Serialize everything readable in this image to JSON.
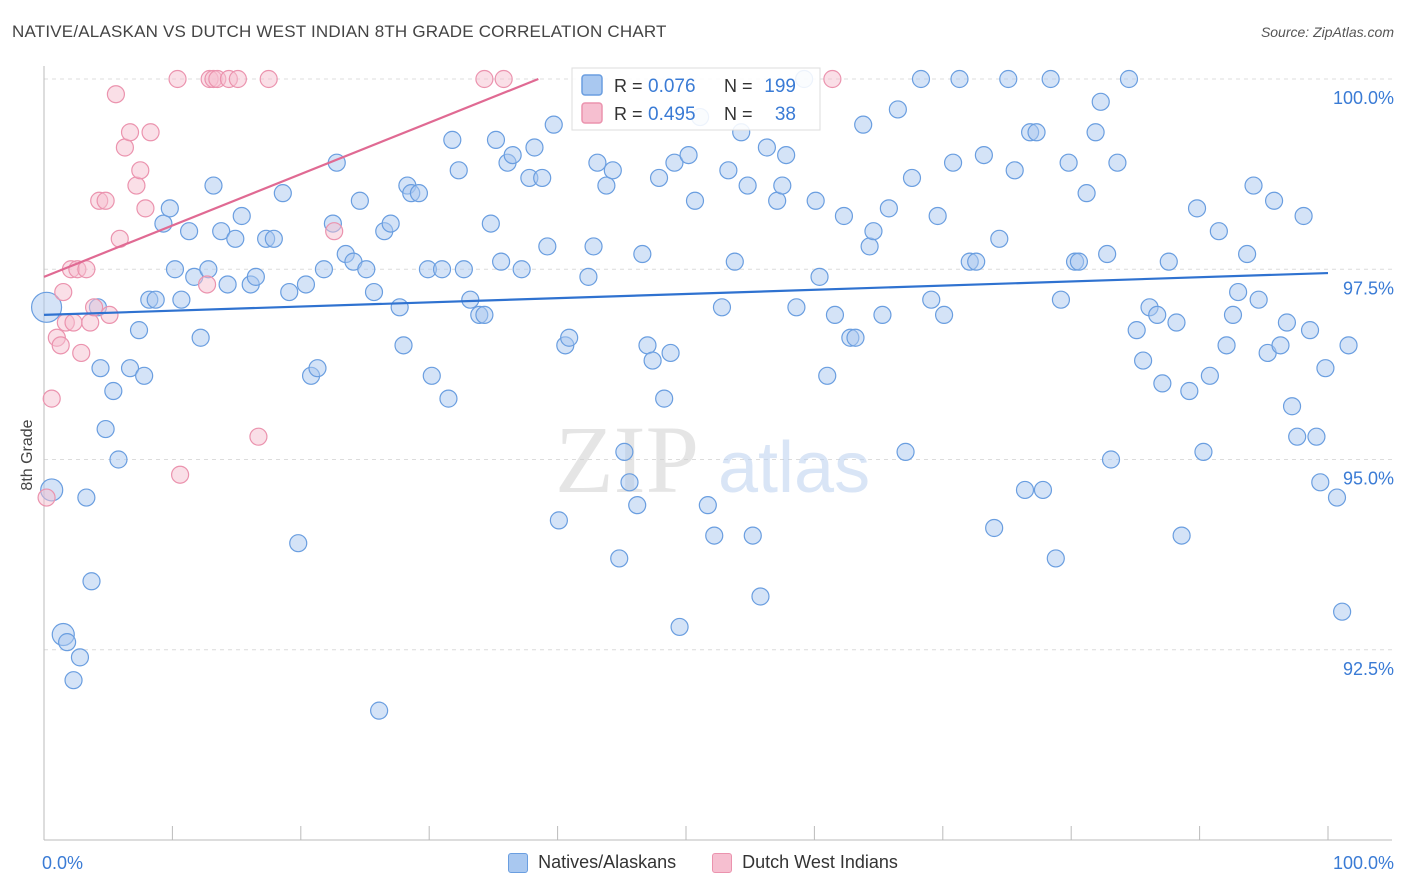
{
  "header": {
    "title": "NATIVE/ALASKAN VS DUTCH WEST INDIAN 8TH GRADE CORRELATION CHART",
    "source": "Source: ZipAtlas.com"
  },
  "watermark": {
    "zip": "ZIP",
    "atlas": "atlas"
  },
  "stats_legend": [
    {
      "r_label": "R =",
      "r_value": "0.076",
      "n_label": "N =",
      "n_value": "199"
    },
    {
      "r_label": "R =",
      "r_value": "0.495",
      "n_label": "N =",
      "n_value": "38"
    }
  ],
  "bottom_legend": [
    {
      "label": "Natives/Alaskans"
    },
    {
      "label": "Dutch West Indians"
    }
  ],
  "colors": {
    "blue_fill": "#a9c8f0",
    "blue_stroke": "#6a9ee0",
    "blue_line": "#2f72d0",
    "pink_fill": "#f6bfd0",
    "pink_stroke": "#eb93ae",
    "pink_line": "#e06a93",
    "value_text": "#3a7bd5",
    "grid": "#dcdcdc"
  },
  "chart_data": {
    "type": "scatter",
    "title": "NATIVE/ALASKAN VS DUTCH WEST INDIAN 8TH GRADE CORRELATION CHART",
    "ylabel": "8th Grade",
    "xlabel": "",
    "x_tick_labels": [
      "0.0%",
      "100.0%"
    ],
    "y_tick_labels": [
      "100.0%",
      "97.5%",
      "95.0%",
      "92.5%"
    ],
    "y_ticks": [
      100.0,
      97.5,
      95.0,
      92.5
    ],
    "xlim": [
      0,
      100
    ],
    "ylim": [
      90.0,
      100.25
    ],
    "grid": true,
    "legend_position": "top-center",
    "series": [
      {
        "name": "Natives/Alaskans",
        "color": "#a9c8f0",
        "trend": {
          "x": [
            0,
            100
          ],
          "y": [
            96.9,
            97.45
          ]
        },
        "points": [
          [
            0.2,
            97.0,
            "L"
          ],
          [
            0.6,
            94.6,
            "M"
          ],
          [
            1.5,
            92.7,
            "M"
          ],
          [
            1.8,
            92.6
          ],
          [
            2.3,
            92.1
          ],
          [
            2.8,
            92.4
          ],
          [
            3.3,
            94.5
          ],
          [
            3.7,
            93.4
          ],
          [
            4.2,
            97.0
          ],
          [
            4.4,
            96.2
          ],
          [
            4.8,
            95.4
          ],
          [
            5.4,
            95.9
          ],
          [
            5.8,
            95.0
          ],
          [
            6.7,
            96.2
          ],
          [
            7.4,
            96.7
          ],
          [
            7.8,
            96.1
          ],
          [
            8.2,
            97.1
          ],
          [
            8.7,
            97.1
          ],
          [
            9.3,
            98.1
          ],
          [
            9.8,
            98.3
          ],
          [
            10.2,
            97.5
          ],
          [
            10.7,
            97.1
          ],
          [
            11.3,
            98.0
          ],
          [
            11.7,
            97.4
          ],
          [
            12.2,
            96.6
          ],
          [
            12.8,
            97.5
          ],
          [
            13.2,
            98.6
          ],
          [
            13.8,
            98.0
          ],
          [
            14.3,
            97.3
          ],
          [
            14.9,
            97.9
          ],
          [
            15.4,
            98.2
          ],
          [
            16.1,
            97.3
          ],
          [
            16.5,
            97.4
          ],
          [
            17.3,
            97.9
          ],
          [
            17.9,
            97.9
          ],
          [
            18.6,
            98.5
          ],
          [
            19.1,
            97.2
          ],
          [
            19.8,
            93.9
          ],
          [
            20.4,
            97.3
          ],
          [
            20.8,
            96.1
          ],
          [
            21.3,
            96.2
          ],
          [
            21.8,
            97.5
          ],
          [
            22.5,
            98.1
          ],
          [
            22.8,
            98.9
          ],
          [
            23.5,
            97.7
          ],
          [
            24.1,
            97.6
          ],
          [
            24.6,
            98.4
          ],
          [
            25.1,
            97.5
          ],
          [
            25.7,
            97.2
          ],
          [
            26.1,
            91.7
          ],
          [
            26.5,
            98.0
          ],
          [
            27.0,
            98.1
          ],
          [
            27.7,
            97.0
          ],
          [
            28.0,
            96.5
          ],
          [
            28.3,
            98.6
          ],
          [
            28.6,
            98.5
          ],
          [
            29.2,
            98.5
          ],
          [
            29.9,
            97.5
          ],
          [
            30.2,
            96.1
          ],
          [
            31.0,
            97.5
          ],
          [
            31.5,
            95.8
          ],
          [
            31.8,
            99.2
          ],
          [
            32.3,
            98.8
          ],
          [
            32.7,
            97.5
          ],
          [
            33.2,
            97.1
          ],
          [
            33.9,
            96.9
          ],
          [
            34.3,
            96.9
          ],
          [
            34.8,
            98.1
          ],
          [
            35.2,
            99.2
          ],
          [
            35.6,
            97.6
          ],
          [
            36.1,
            98.9
          ],
          [
            36.5,
            99.0
          ],
          [
            37.2,
            97.5
          ],
          [
            37.8,
            98.7
          ],
          [
            38.2,
            99.1
          ],
          [
            38.8,
            98.7
          ],
          [
            39.2,
            97.8
          ],
          [
            39.7,
            99.4
          ],
          [
            40.1,
            94.2
          ],
          [
            40.6,
            96.5
          ],
          [
            40.9,
            96.6
          ],
          [
            42.4,
            97.4
          ],
          [
            42.8,
            97.8
          ],
          [
            43.1,
            98.9
          ],
          [
            43.8,
            98.6
          ],
          [
            44.3,
            98.8
          ],
          [
            44.8,
            93.7
          ],
          [
            45.2,
            95.1
          ],
          [
            45.6,
            94.7
          ],
          [
            46.2,
            94.4
          ],
          [
            46.6,
            97.7
          ],
          [
            47.0,
            96.5
          ],
          [
            47.4,
            96.3
          ],
          [
            47.9,
            98.7
          ],
          [
            48.3,
            95.8
          ],
          [
            48.8,
            96.4
          ],
          [
            49.1,
            98.9
          ],
          [
            49.5,
            92.8
          ],
          [
            50.2,
            99.0
          ],
          [
            50.7,
            98.4
          ],
          [
            51.1,
            99.5
          ],
          [
            51.7,
            94.4
          ],
          [
            52.2,
            94.0
          ],
          [
            52.8,
            97.0
          ],
          [
            53.3,
            98.8
          ],
          [
            53.8,
            97.6
          ],
          [
            54.3,
            99.3
          ],
          [
            54.8,
            98.6
          ],
          [
            55.2,
            94.0
          ],
          [
            55.8,
            93.2
          ],
          [
            56.3,
            99.1
          ],
          [
            57.1,
            98.4
          ],
          [
            57.5,
            98.6
          ],
          [
            57.8,
            99.0
          ],
          [
            58.6,
            97.0
          ],
          [
            59.2,
            100.0
          ],
          [
            60.1,
            98.4
          ],
          [
            60.4,
            97.4
          ],
          [
            61.0,
            96.1
          ],
          [
            61.6,
            96.9
          ],
          [
            62.3,
            98.2
          ],
          [
            62.8,
            96.6
          ],
          [
            63.2,
            96.6
          ],
          [
            63.8,
            99.4
          ],
          [
            64.3,
            97.8
          ],
          [
            64.6,
            98.0
          ],
          [
            65.3,
            96.9
          ],
          [
            65.8,
            98.3
          ],
          [
            66.5,
            99.6
          ],
          [
            67.1,
            95.1
          ],
          [
            67.6,
            98.7
          ],
          [
            68.3,
            100.0
          ],
          [
            69.1,
            97.1
          ],
          [
            69.6,
            98.2
          ],
          [
            70.1,
            96.9
          ],
          [
            70.8,
            98.9
          ],
          [
            71.3,
            100.0
          ],
          [
            72.1,
            97.6
          ],
          [
            72.6,
            97.6
          ],
          [
            73.2,
            99.0
          ],
          [
            74.0,
            94.1
          ],
          [
            74.4,
            97.9
          ],
          [
            75.1,
            100.0
          ],
          [
            75.6,
            98.8
          ],
          [
            76.4,
            94.6
          ],
          [
            76.8,
            99.3
          ],
          [
            77.3,
            99.3
          ],
          [
            77.8,
            94.6
          ],
          [
            78.4,
            100.0
          ],
          [
            78.8,
            93.7
          ],
          [
            79.2,
            97.1
          ],
          [
            79.8,
            98.9
          ],
          [
            80.3,
            97.6
          ],
          [
            80.6,
            97.6
          ],
          [
            81.2,
            98.5
          ],
          [
            81.9,
            99.3
          ],
          [
            82.3,
            99.7
          ],
          [
            82.8,
            97.7
          ],
          [
            83.1,
            95.0
          ],
          [
            83.6,
            98.9
          ],
          [
            84.5,
            100.0
          ],
          [
            85.1,
            96.7
          ],
          [
            85.6,
            96.3
          ],
          [
            86.1,
            97.0
          ],
          [
            86.7,
            96.9
          ],
          [
            87.1,
            96.0
          ],
          [
            87.6,
            97.6
          ],
          [
            88.2,
            96.8
          ],
          [
            88.6,
            94.0
          ],
          [
            89.2,
            95.9
          ],
          [
            89.8,
            98.3
          ],
          [
            90.3,
            95.1
          ],
          [
            90.8,
            96.1
          ],
          [
            91.5,
            98.0
          ],
          [
            92.1,
            96.5
          ],
          [
            92.6,
            96.9
          ],
          [
            93.0,
            97.2
          ],
          [
            93.7,
            97.7
          ],
          [
            94.2,
            98.6
          ],
          [
            94.6,
            97.1
          ],
          [
            95.3,
            96.4
          ],
          [
            95.8,
            98.4
          ],
          [
            96.3,
            96.5
          ],
          [
            96.8,
            96.8
          ],
          [
            97.2,
            95.7
          ],
          [
            97.6,
            95.3
          ],
          [
            98.1,
            98.2
          ],
          [
            98.6,
            96.7
          ],
          [
            99.1,
            95.3
          ],
          [
            99.4,
            94.7
          ],
          [
            99.8,
            96.2
          ],
          [
            100.7,
            94.5
          ],
          [
            101.1,
            93.0
          ],
          [
            101.6,
            96.5
          ]
        ]
      },
      {
        "name": "Dutch West Indians",
        "color": "#f6bfd0",
        "trend": {
          "x": [
            0,
            38.5
          ],
          "y": [
            97.4,
            100.0
          ]
        },
        "points": [
          [
            0.2,
            94.5
          ],
          [
            0.6,
            95.8
          ],
          [
            1.0,
            96.6
          ],
          [
            1.3,
            96.5
          ],
          [
            1.5,
            97.2
          ],
          [
            1.7,
            96.8
          ],
          [
            2.1,
            97.5
          ],
          [
            2.3,
            96.8
          ],
          [
            2.6,
            97.5
          ],
          [
            2.9,
            96.4
          ],
          [
            3.3,
            97.5
          ],
          [
            3.6,
            96.8
          ],
          [
            3.9,
            97.0
          ],
          [
            4.3,
            98.4
          ],
          [
            4.8,
            98.4
          ],
          [
            5.1,
            96.9
          ],
          [
            5.6,
            99.8
          ],
          [
            5.9,
            97.9
          ],
          [
            6.3,
            99.1
          ],
          [
            6.7,
            99.3
          ],
          [
            7.2,
            98.6
          ],
          [
            7.5,
            98.8
          ],
          [
            7.9,
            98.3
          ],
          [
            8.3,
            99.3
          ],
          [
            10.4,
            100.0
          ],
          [
            10.6,
            94.8
          ],
          [
            12.7,
            97.3
          ],
          [
            12.9,
            100.0
          ],
          [
            13.2,
            100.0
          ],
          [
            13.5,
            100.0
          ],
          [
            14.4,
            100.0
          ],
          [
            15.1,
            100.0
          ],
          [
            16.7,
            95.3
          ],
          [
            17.5,
            100.0
          ],
          [
            22.6,
            98.0
          ],
          [
            34.3,
            100.0
          ],
          [
            35.8,
            100.0
          ],
          [
            61.4,
            100.0
          ]
        ]
      }
    ]
  }
}
